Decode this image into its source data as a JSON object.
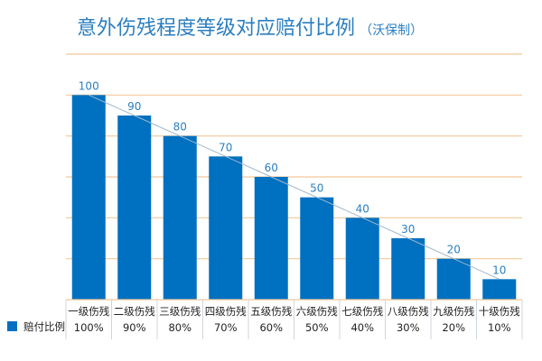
{
  "chart_data": {
    "type": "bar",
    "title": "意外伤残程度等级对应赔付比例",
    "subtitle": "（沃保制）",
    "categories": [
      "一级伤残",
      "二级伤残",
      "三级伤残",
      "四级伤残",
      "五级伤残",
      "六级伤残",
      "七级伤残",
      "八级伤残",
      "九级伤残",
      "十级伤残"
    ],
    "series": [
      {
        "name": "赔付比例",
        "values": [
          100,
          90,
          80,
          70,
          60,
          50,
          40,
          30,
          20,
          10
        ],
        "table_values": [
          "100%",
          "90%",
          "80%",
          "70%",
          "60%",
          "50%",
          "40%",
          "30%",
          "20%",
          "10%"
        ]
      }
    ],
    "ylim": [
      0,
      120
    ],
    "ytick_step": 20,
    "grid": true,
    "trend_line": true,
    "legend": "data-table-bottom-left",
    "colors": {
      "bar": "#0070c0",
      "title": "#2c7fc0",
      "grid": "#f2c89a",
      "trend": "#9fb7cc",
      "data_label": "#2c7fc0"
    }
  }
}
